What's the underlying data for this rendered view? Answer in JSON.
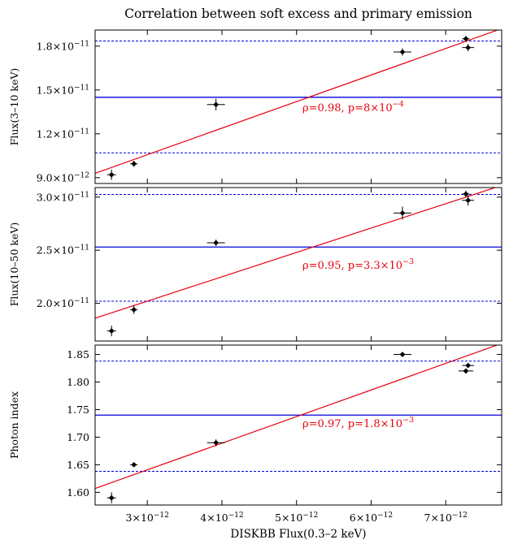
{
  "figure": {
    "title": "Correlation between soft excess and primary emission",
    "xlabel": "DISKBB Flux(0.3–2 keV)"
  },
  "colors": {
    "data": "#000000",
    "fit_line": "#e8000b",
    "mean_line": "#0000dd",
    "annotation": "#e8000b"
  },
  "chart_data": [
    {
      "type": "scatter",
      "ylabel": "Flux(3–10 keV)",
      "xlim": [
        2.3e-12,
        7.75e-12
      ],
      "ylim": [
        8.6e-12,
        1.91e-11
      ],
      "x_ticks": [
        {
          "value": 3e-12,
          "mant": "3",
          "exp": "−12"
        },
        {
          "value": 4e-12,
          "mant": "4",
          "exp": "−12"
        },
        {
          "value": 5e-12,
          "mant": "5",
          "exp": "−12"
        },
        {
          "value": 6e-12,
          "mant": "6",
          "exp": "−12"
        },
        {
          "value": 7e-12,
          "mant": "7",
          "exp": "−12"
        }
      ],
      "y_ticks": [
        {
          "value": 9e-12,
          "mant": "9.0",
          "exp": "−12"
        },
        {
          "value": 1.2e-11,
          "mant": "1.2",
          "exp": "−11"
        },
        {
          "value": 1.5e-11,
          "mant": "1.5",
          "exp": "−11"
        },
        {
          "value": 1.8e-11,
          "mant": "1.8",
          "exp": "−11"
        }
      ],
      "points": [
        {
          "x": 2.52e-12,
          "y": 9.2e-12,
          "xerr": 6e-14,
          "yerr": 3.5e-13
        },
        {
          "x": 2.82e-12,
          "y": 9.95e-12,
          "xerr": 5e-14,
          "yerr": 2e-13
        },
        {
          "x": 3.92e-12,
          "y": 1.4e-11,
          "xerr": 1.2e-13,
          "yerr": 4e-13
        },
        {
          "x": 6.42e-12,
          "y": 1.76e-11,
          "xerr": 1.2e-13,
          "yerr": 2.5e-13
        },
        {
          "x": 7.27e-12,
          "y": 1.85e-11,
          "xerr": 5e-14,
          "yerr": 2e-13
        },
        {
          "x": 7.3e-12,
          "y": 1.79e-11,
          "xerr": 8e-14,
          "yerr": 2.5e-13
        }
      ],
      "fit_line": [
        [
          2.3e-12,
          9.3e-12
        ],
        [
          7.75e-12,
          1.92e-11
        ]
      ],
      "mean": 1.45e-11,
      "mean_minus_sigma": 1.07e-11,
      "mean_plus_sigma": 1.835e-11,
      "annotation": {
        "base": "ρ=0.98, p=8×10",
        "exp": "−4"
      }
    },
    {
      "type": "scatter",
      "ylabel": "Flux(10–50 keV)",
      "xlim": [
        2.3e-12,
        7.75e-12
      ],
      "ylim": [
        1.645e-11,
        3.09e-11
      ],
      "x_ticks": [],
      "y_ticks": [
        {
          "value": 2e-11,
          "mant": "2.0",
          "exp": "−11"
        },
        {
          "value": 2.5e-11,
          "mant": "2.5",
          "exp": "−11"
        },
        {
          "value": 3e-11,
          "mant": "3.0",
          "exp": "−11"
        }
      ],
      "points": [
        {
          "x": 2.52e-12,
          "y": 1.74e-11,
          "xerr": 6e-14,
          "yerr": 5e-13
        },
        {
          "x": 2.82e-12,
          "y": 1.94e-11,
          "xerr": 5e-14,
          "yerr": 4e-13
        },
        {
          "x": 3.92e-12,
          "y": 2.57e-11,
          "xerr": 1.2e-13,
          "yerr": 3e-13
        },
        {
          "x": 6.42e-12,
          "y": 2.85e-11,
          "xerr": 1.2e-13,
          "yerr": 6e-13
        },
        {
          "x": 7.27e-12,
          "y": 3.03e-11,
          "xerr": 5e-14,
          "yerr": 3e-13
        },
        {
          "x": 7.3e-12,
          "y": 2.97e-11,
          "xerr": 8e-14,
          "yerr": 5e-13
        }
      ],
      "fit_line": [
        [
          2.3e-12,
          1.86e-11
        ],
        [
          7.75e-12,
          3.11e-11
        ]
      ],
      "mean": 2.53e-11,
      "mean_minus_sigma": 2.02e-11,
      "mean_plus_sigma": 3.025e-11,
      "annotation": {
        "base": "ρ=0.95, p=3.3×10",
        "exp": "−3"
      }
    },
    {
      "type": "scatter",
      "ylabel": "Photon index",
      "xlim": [
        2.3e-12,
        7.75e-12
      ],
      "ylim": [
        1.577,
        1.867
      ],
      "x_ticks": [
        {
          "value": 3e-12,
          "mant": "3",
          "exp": "−12"
        },
        {
          "value": 4e-12,
          "mant": "4",
          "exp": "−12"
        },
        {
          "value": 5e-12,
          "mant": "5",
          "exp": "−12"
        },
        {
          "value": 6e-12,
          "mant": "6",
          "exp": "−12"
        },
        {
          "value": 7e-12,
          "mant": "7",
          "exp": "−12"
        }
      ],
      "y_ticks": [
        {
          "value": 1.6,
          "mant": "1.60",
          "exp": ""
        },
        {
          "value": 1.65,
          "mant": "1.65",
          "exp": ""
        },
        {
          "value": 1.7,
          "mant": "1.70",
          "exp": ""
        },
        {
          "value": 1.75,
          "mant": "1.75",
          "exp": ""
        },
        {
          "value": 1.8,
          "mant": "1.80",
          "exp": ""
        },
        {
          "value": 1.85,
          "mant": "1.85",
          "exp": ""
        }
      ],
      "points": [
        {
          "x": 2.52e-12,
          "y": 1.59,
          "xerr": 6e-14,
          "yerr": 0.01
        },
        {
          "x": 2.82e-12,
          "y": 1.65,
          "xerr": 5e-14,
          "yerr": 0.004
        },
        {
          "x": 3.92e-12,
          "y": 1.69,
          "xerr": 1.2e-13,
          "yerr": 0.006
        },
        {
          "x": 6.42e-12,
          "y": 1.85,
          "xerr": 1.2e-13,
          "yerr": 0.002
        },
        {
          "x": 7.27e-12,
          "y": 1.82,
          "xerr": 1e-13,
          "yerr": 0.004
        },
        {
          "x": 7.3e-12,
          "y": 1.83,
          "xerr": 8e-14,
          "yerr": 0.004
        }
      ],
      "fit_line": [
        [
          2.3e-12,
          1.607
        ],
        [
          7.75e-12,
          1.87
        ]
      ],
      "mean": 1.74,
      "mean_minus_sigma": 1.638,
      "mean_plus_sigma": 1.838,
      "annotation": {
        "base": "ρ=0.97, p=1.8×10",
        "exp": "−3"
      }
    }
  ]
}
